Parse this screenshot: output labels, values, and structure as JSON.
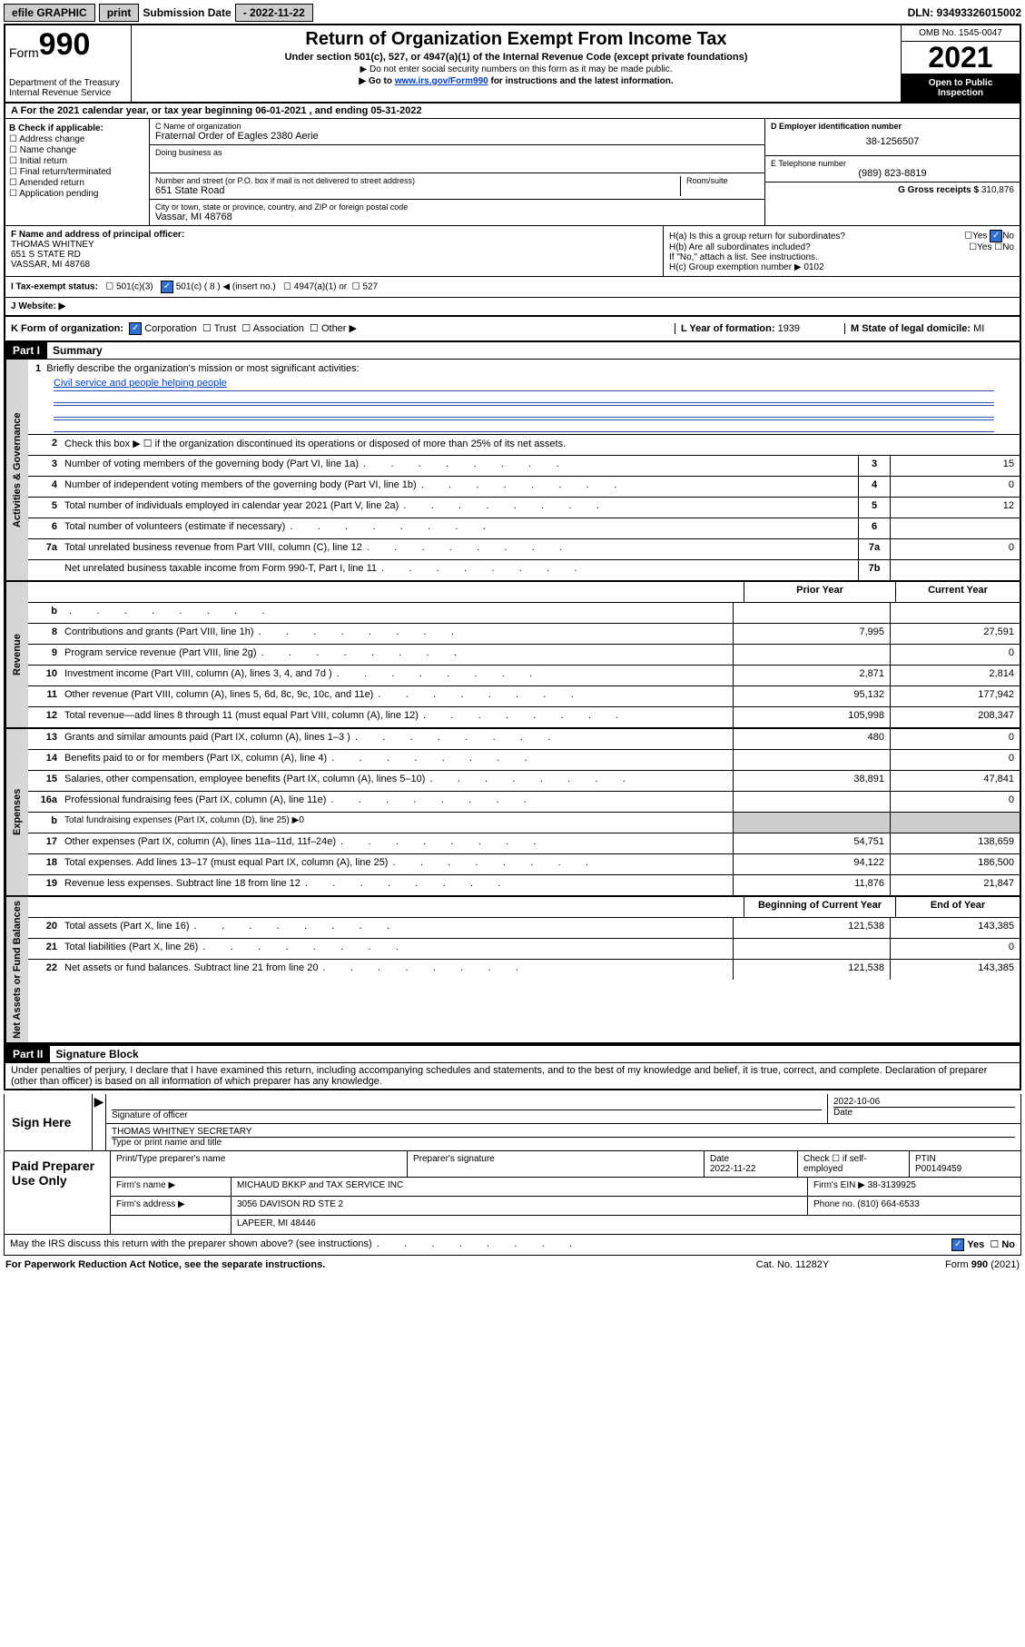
{
  "topbar": {
    "efile": "efile GRAPHIC",
    "print": "print",
    "sub_lbl": "Submission Date",
    "sub_date": "- 2022-11-22",
    "dln": "DLN: 93493326015002"
  },
  "header": {
    "form": "Form",
    "form_no": "990",
    "dept": "Department of the Treasury",
    "irs": "Internal Revenue Service",
    "title": "Return of Organization Exempt From Income Tax",
    "sub1": "Under section 501(c), 527, or 4947(a)(1) of the Internal Revenue Code (except private foundations)",
    "sub2": "▶ Do not enter social security numbers on this form as it may be made public.",
    "sub3_pre": "▶ Go to ",
    "sub3_link": "www.irs.gov/Form990",
    "sub3_post": " for instructions and the latest information.",
    "omb": "OMB No. 1545-0047",
    "year": "2021",
    "open": "Open to Public Inspection"
  },
  "row_a": "A For the 2021 calendar year, or tax year beginning 06-01-2021   , and ending 05-31-2022",
  "col_b": {
    "hdr": "B Check if applicable:",
    "items": [
      "Address change",
      "Name change",
      "Initial return",
      "Final return/terminated",
      "Amended return",
      "Application pending"
    ]
  },
  "col_c": {
    "name_lbl": "C Name of organization",
    "name": "Fraternal Order of Eagles 2380 Aerie",
    "dba_lbl": "Doing business as",
    "addr_lbl": "Number and street (or P.O. box if mail is not delivered to street address)",
    "addr": "651 State Road",
    "room_lbl": "Room/suite",
    "city_lbl": "City or town, state or province, country, and ZIP or foreign postal code",
    "city": "Vassar, MI  48768"
  },
  "col_d": {
    "ein_lbl": "D Employer identification number",
    "ein": "38-1256507",
    "tel_lbl": "E Telephone number",
    "tel": "(989) 823-8819",
    "gross_lbl": "G Gross receipts $",
    "gross": "310,876"
  },
  "row_f": {
    "lbl": "F Name and address of principal officer:",
    "name": "THOMAS WHITNEY",
    "addr1": "651 S STATE RD",
    "addr2": "VASSAR, MI  48768"
  },
  "row_h": {
    "a": "H(a)  Is this a group return for subordinates?",
    "b": "H(b)  Are all subordinates included?",
    "note": "If \"No,\" attach a list. See instructions.",
    "c": "H(c)  Group exemption number ▶",
    "c_val": "0102",
    "yes": "Yes",
    "no": "No"
  },
  "row_i": {
    "lbl": "I   Tax-exempt status:",
    "c3": "501(c)(3)",
    "c": "501(c) ( 8 ) ◀ (insert no.)",
    "a1": "4947(a)(1) or",
    "s527": "527"
  },
  "row_j": "J   Website: ▶",
  "row_k": {
    "lbl": "K Form of organization:",
    "corp": "Corporation",
    "trust": "Trust",
    "assoc": "Association",
    "other": "Other ▶",
    "l_lbl": "L Year of formation:",
    "l_val": "1939",
    "m_lbl": "M State of legal domicile:",
    "m_val": "MI"
  },
  "part1": {
    "hdr": "Part I",
    "title": "Summary",
    "sections": [
      {
        "tab": "Activities & Governance",
        "lines": [
          {
            "n": "1",
            "txt": "Briefly describe the organization's mission or most significant activities:",
            "mission": true
          },
          {
            "mission_val": "Civil service and people helping people"
          },
          {
            "n": "2",
            "txt": "Check this box ▶ ☐  if the organization discontinued its operations or disposed of more than 25% of its net assets.",
            "nobox": true
          },
          {
            "n": "3",
            "txt": "Number of voting members of the governing body (Part VI, line 1a)",
            "box": "3",
            "v2": "15"
          },
          {
            "n": "4",
            "txt": "Number of independent voting members of the governing body (Part VI, line 1b)",
            "box": "4",
            "v2": "0"
          },
          {
            "n": "5",
            "txt": "Total number of individuals employed in calendar year 2021 (Part V, line 2a)",
            "box": "5",
            "v2": "12"
          },
          {
            "n": "6",
            "txt": "Total number of volunteers (estimate if necessary)",
            "box": "6",
            "v2": ""
          },
          {
            "n": "7a",
            "txt": "Total unrelated business revenue from Part VIII, column (C), line 12",
            "box": "7a",
            "v2": "0"
          },
          {
            "n": "",
            "txt": "Net unrelated business taxable income from Form 990-T, Part I, line 11",
            "box": "7b",
            "v2": ""
          }
        ]
      },
      {
        "tab": "Revenue",
        "hdr": {
          "h1": "Prior Year",
          "h2": "Current Year"
        },
        "lines": [
          {
            "n": "b",
            "txt_hidden": true
          },
          {
            "n": "8",
            "txt": "Contributions and grants (Part VIII, line 1h)",
            "v1": "7,995",
            "v2": "27,591"
          },
          {
            "n": "9",
            "txt": "Program service revenue (Part VIII, line 2g)",
            "v1": "",
            "v2": "0"
          },
          {
            "n": "10",
            "txt": "Investment income (Part VIII, column (A), lines 3, 4, and 7d )",
            "v1": "2,871",
            "v2": "2,814"
          },
          {
            "n": "11",
            "txt": "Other revenue (Part VIII, column (A), lines 5, 6d, 8c, 9c, 10c, and 11e)",
            "v1": "95,132",
            "v2": "177,942"
          },
          {
            "n": "12",
            "txt": "Total revenue—add lines 8 through 11 (must equal Part VIII, column (A), line 12)",
            "v1": "105,998",
            "v2": "208,347"
          }
        ]
      },
      {
        "tab": "Expenses",
        "lines": [
          {
            "n": "13",
            "txt": "Grants and similar amounts paid (Part IX, column (A), lines 1–3 )",
            "v1": "480",
            "v2": "0"
          },
          {
            "n": "14",
            "txt": "Benefits paid to or for members (Part IX, column (A), line 4)",
            "v1": "",
            "v2": "0"
          },
          {
            "n": "15",
            "txt": "Salaries, other compensation, employee benefits (Part IX, column (A), lines 5–10)",
            "v1": "38,891",
            "v2": "47,841"
          },
          {
            "n": "16a",
            "txt": "Professional fundraising fees (Part IX, column (A), line 11e)",
            "v1": "",
            "v2": "0"
          },
          {
            "n": "b",
            "txt": "Total fundraising expenses (Part IX, column (D), line 25) ▶0",
            "shade": true,
            "small": true
          },
          {
            "n": "17",
            "txt": "Other expenses (Part IX, column (A), lines 11a–11d, 11f–24e)",
            "v1": "54,751",
            "v2": "138,659"
          },
          {
            "n": "18",
            "txt": "Total expenses. Add lines 13–17 (must equal Part IX, column (A), line 25)",
            "v1": "94,122",
            "v2": "186,500"
          },
          {
            "n": "19",
            "txt": "Revenue less expenses. Subtract line 18 from line 12",
            "v1": "11,876",
            "v2": "21,847"
          }
        ]
      },
      {
        "tab": "Net Assets or Fund Balances",
        "hdr": {
          "h1": "Beginning of Current Year",
          "h2": "End of Year"
        },
        "lines": [
          {
            "n": "20",
            "txt": "Total assets (Part X, line 16)",
            "v1": "121,538",
            "v2": "143,385"
          },
          {
            "n": "21",
            "txt": "Total liabilities (Part X, line 26)",
            "v1": "",
            "v2": "0"
          },
          {
            "n": "22",
            "txt": "Net assets or fund balances. Subtract line 21 from line 20",
            "v1": "121,538",
            "v2": "143,385"
          }
        ]
      }
    ]
  },
  "part2": {
    "hdr": "Part II",
    "title": "Signature Block",
    "decl": "Under penalties of perjury, I declare that I have examined this return, including accompanying schedules and statements, and to the best of my knowledge and belief, it is true, correct, and complete. Declaration of preparer (other than officer) is based on all information of which preparer has any knowledge."
  },
  "sign": {
    "here": "Sign Here",
    "sig_lbl": "Signature of officer",
    "date": "2022-10-06",
    "date_lbl": "Date",
    "name": "THOMAS WHITNEY  SECRETARY",
    "name_lbl": "Type or print name and title"
  },
  "paid": {
    "hdr": "Paid Preparer Use Only",
    "r1": {
      "c1": "Print/Type preparer's name",
      "c2": "Preparer's signature",
      "c3": "Date",
      "c3v": "2022-11-22",
      "c4": "Check ☐ if self-employed",
      "c5": "PTIN",
      "c5v": "P00149459"
    },
    "r2": {
      "lbl": "Firm's name      ▶",
      "val": "MICHAUD BKKP and TAX SERVICE INC",
      "ein_lbl": "Firm's EIN ▶",
      "ein": "38-3139925"
    },
    "r3": {
      "lbl": "Firm's address ▶",
      "val": "3056 DAVISON RD STE 2",
      "tel_lbl": "Phone no.",
      "tel": "(810) 664-6533"
    },
    "r4": {
      "val": "LAPEER, MI  48446"
    }
  },
  "may": {
    "txt": "May the IRS discuss this return with the preparer shown above? (see instructions)",
    "yes": "Yes",
    "no": "No"
  },
  "footer": {
    "left": "For Paperwork Reduction Act Notice, see the separate instructions.",
    "mid": "Cat. No. 11282Y",
    "right": "Form 990 (2021)"
  }
}
